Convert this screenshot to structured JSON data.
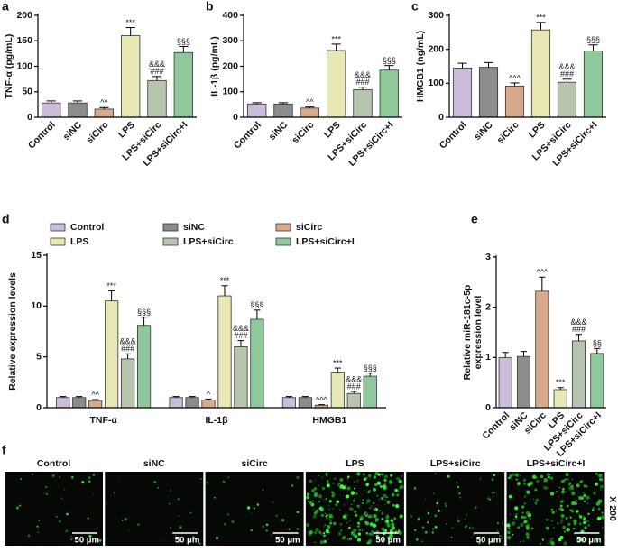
{
  "chart_data": [
    {
      "type": "bar",
      "panel": "a",
      "ylabel": "TNF-α (pg/mL)",
      "categories": [
        "Control",
        "siNC",
        "siCirc",
        "LPS",
        "LPS+siCirc",
        "LPS+siCirc+I"
      ],
      "values": [
        28,
        28,
        16,
        160,
        72,
        127
      ],
      "errors": [
        4,
        4,
        3,
        16,
        8,
        12
      ],
      "colors": [
        "#cbbcd9",
        "#8c8c8c",
        "#d8aa8c",
        "#e8e8b4",
        "#b7c4ae",
        "#8fc89b"
      ],
      "annotations": [
        null,
        null,
        [
          "^^"
        ],
        [
          "***"
        ],
        [
          "&&&",
          "###"
        ],
        [
          "§§§"
        ]
      ],
      "ylim": [
        0,
        200
      ],
      "yticks": [
        0,
        50,
        100,
        150,
        200
      ]
    },
    {
      "type": "bar",
      "panel": "b",
      "ylabel": "IL-1β (pg/mL)",
      "categories": [
        "Control",
        "siNC",
        "siCirc",
        "LPS",
        "LPS+siCirc",
        "LPS+siCirc+I"
      ],
      "values": [
        52,
        52,
        36,
        262,
        108,
        185
      ],
      "errors": [
        5,
        5,
        4,
        25,
        10,
        18
      ],
      "colors": [
        "#cbbcd9",
        "#8c8c8c",
        "#d8aa8c",
        "#e8e8b4",
        "#b7c4ae",
        "#8fc89b"
      ],
      "annotations": [
        null,
        null,
        [
          "^^"
        ],
        [
          "***"
        ],
        [
          "&&&",
          "###"
        ],
        [
          "§§§"
        ]
      ],
      "ylim": [
        0,
        400
      ],
      "yticks": [
        0,
        100,
        200,
        300,
        400
      ]
    },
    {
      "type": "bar",
      "panel": "c",
      "ylabel": "HMGB1 (ng/mL)",
      "categories": [
        "Control",
        "siNC",
        "siCirc",
        "LPS",
        "LPS+siCirc",
        "LPS+siCirc+I"
      ],
      "values": [
        145,
        147,
        92,
        257,
        103,
        195
      ],
      "errors": [
        14,
        14,
        9,
        22,
        9,
        18
      ],
      "colors": [
        "#cbbcd9",
        "#8c8c8c",
        "#d8aa8c",
        "#e8e8b4",
        "#b7c4ae",
        "#8fc89b"
      ],
      "annotations": [
        null,
        null,
        [
          "^^^"
        ],
        [
          "***"
        ],
        [
          "&&&",
          "###"
        ],
        [
          "§§§"
        ]
      ],
      "ylim": [
        0,
        300
      ],
      "yticks": [
        0,
        100,
        200,
        300
      ]
    },
    {
      "type": "bar",
      "panel": "d",
      "ylabel": "Relative expression levels",
      "categories": [
        "TNF-α",
        "IL-1β",
        "HMGB1"
      ],
      "series": [
        {
          "name": "Control",
          "color": "#cbbcd9",
          "values": [
            1.0,
            1.0,
            1.0
          ],
          "errors": [
            0.1,
            0.1,
            0.1
          ]
        },
        {
          "name": "siNC",
          "color": "#8c8c8c",
          "values": [
            1.0,
            1.0,
            1.0
          ],
          "errors": [
            0.1,
            0.1,
            0.1
          ]
        },
        {
          "name": "siCirc",
          "color": "#d8aa8c",
          "values": [
            0.7,
            0.75,
            0.25
          ],
          "errors": [
            0.1,
            0.1,
            0.05
          ],
          "annotations": [
            [
              "^^"
            ],
            [
              "^"
            ],
            [
              "^^^"
            ]
          ]
        },
        {
          "name": "LPS",
          "color": "#e8e8b4",
          "values": [
            10.5,
            11.0,
            3.5
          ],
          "errors": [
            1.0,
            1.0,
            0.4
          ],
          "annotations": [
            [
              "***"
            ],
            [
              "***"
            ],
            [
              "***"
            ]
          ]
        },
        {
          "name": "LPS+siCirc",
          "color": "#b7c4ae",
          "values": [
            4.8,
            6.0,
            1.4
          ],
          "errors": [
            0.5,
            0.6,
            0.2
          ],
          "annotations": [
            [
              "&&&",
              "###"
            ],
            [
              "&&&",
              "###"
            ],
            [
              "&&&",
              "###"
            ]
          ]
        },
        {
          "name": "LPS+siCirc+I",
          "color": "#8fc89b",
          "values": [
            8.1,
            8.7,
            3.1
          ],
          "errors": [
            0.8,
            0.9,
            0.3
          ],
          "annotations": [
            [
              "§§§"
            ],
            [
              "§§§"
            ],
            [
              "§§§"
            ]
          ]
        }
      ],
      "ylim": [
        0,
        15
      ],
      "yticks": [
        0,
        5,
        10,
        15
      ]
    },
    {
      "type": "bar",
      "panel": "e",
      "ylabel": [
        "Relative miR-181c-5p",
        "expression level"
      ],
      "categories": [
        "Control",
        "siNC",
        "siCirc",
        "LPS",
        "LPS+siCirc",
        "LPS+siCirc+I"
      ],
      "values": [
        1.0,
        1.02,
        2.32,
        0.36,
        1.33,
        1.08
      ],
      "errors": [
        0.1,
        0.1,
        0.28,
        0.04,
        0.13,
        0.1
      ],
      "colors": [
        "#cbbcd9",
        "#8c8c8c",
        "#d8aa8c",
        "#e8e8b4",
        "#b7c4ae",
        "#8fc89b"
      ],
      "annotations": [
        null,
        null,
        [
          "^^^"
        ],
        [
          "***"
        ],
        [
          "&&&",
          "###"
        ],
        [
          "§§"
        ]
      ],
      "ylim": [
        0,
        3
      ],
      "yticks": [
        0,
        1,
        2,
        3
      ]
    }
  ],
  "images": {
    "panel": "f",
    "labels": [
      "Control",
      "siNC",
      "siCirc",
      "LPS",
      "LPS+siCirc",
      "LPS+siCirc+I"
    ],
    "scale_bar": "50 μm",
    "magnification": "X 200"
  }
}
